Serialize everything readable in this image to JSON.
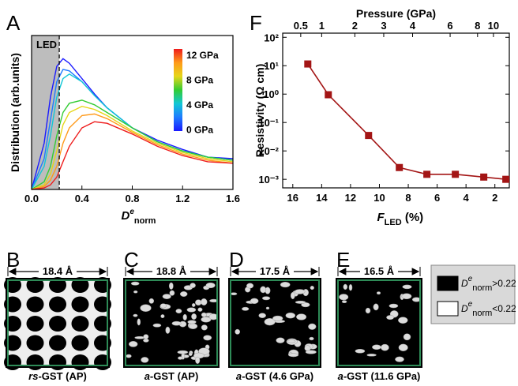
{
  "chart_data": [
    {
      "type": "line",
      "panel_label": "A",
      "ylabel": "Distribution (arb.units)",
      "xlabel": {
        "symbol": "D",
        "sup": "e",
        "sub": "norm"
      },
      "x": [
        0,
        0.1,
        0.15,
        0.2,
        0.25,
        0.3,
        0.4,
        0.5,
        0.6,
        0.8,
        1.0,
        1.2,
        1.4,
        1.6
      ],
      "series": [
        {
          "color": "#1a1aff",
          "values": [
            0,
            0.3,
            0.6,
            0.8,
            0.85,
            0.82,
            0.72,
            0.62,
            0.53,
            0.4,
            0.32,
            0.26,
            0.21,
            0.2
          ]
        },
        {
          "color": "#1e7bff",
          "values": [
            0,
            0.2,
            0.45,
            0.7,
            0.78,
            0.77,
            0.7,
            0.61,
            0.53,
            0.4,
            0.31,
            0.25,
            0.21,
            0.19
          ]
        },
        {
          "color": "#12c7d6",
          "values": [
            0,
            0.15,
            0.35,
            0.6,
            0.72,
            0.75,
            0.7,
            0.61,
            0.53,
            0.4,
            0.31,
            0.25,
            0.21,
            0.19
          ]
        },
        {
          "color": "#33cc33",
          "values": [
            0,
            0.05,
            0.15,
            0.35,
            0.5,
            0.56,
            0.58,
            0.55,
            0.5,
            0.4,
            0.31,
            0.25,
            0.21,
            0.19
          ]
        },
        {
          "color": "#e6d619",
          "values": [
            0,
            0.03,
            0.1,
            0.25,
            0.42,
            0.5,
            0.54,
            0.52,
            0.48,
            0.38,
            0.3,
            0.24,
            0.2,
            0.18
          ]
        },
        {
          "color": "#ff9a1a",
          "values": [
            0,
            0.02,
            0.06,
            0.15,
            0.3,
            0.4,
            0.48,
            0.49,
            0.46,
            0.37,
            0.29,
            0.23,
            0.19,
            0.17
          ]
        },
        {
          "color": "#ee1c1c",
          "values": [
            0,
            0.01,
            0.03,
            0.08,
            0.18,
            0.28,
            0.4,
            0.44,
            0.43,
            0.36,
            0.28,
            0.22,
            0.18,
            0.17
          ]
        }
      ],
      "xlim": [
        0,
        1.6
      ],
      "ylim": [
        0,
        1
      ],
      "xticks": [
        {
          "value": 0,
          "label": "0.0"
        },
        0.4,
        0.8,
        1.2,
        1.6
      ],
      "shaded_xlim": [
        0,
        0.22
      ],
      "shade_label": "LED",
      "colorbar_labels": [
        "12 GPa",
        "8 GPa",
        "4 GPa",
        "0 GPa"
      ]
    },
    {
      "type": "line",
      "panel_label": "F",
      "log_y": true,
      "ylabel": "Resistivity (Ω cm)",
      "xlabel": {
        "symbol": "F",
        "sub": "LED",
        "text": " (%)"
      },
      "x2label": "Pressure (GPa)",
      "color": "#a31515",
      "x": [
        14.96,
        13.54,
        10.75,
        8.62,
        6.71,
        4.74,
        2.77,
        1.24
      ],
      "values": [
        11.5,
        0.95,
        0.035,
        0.0026,
        0.0015,
        0.0015,
        0.0012,
        0.001
      ],
      "xlim": [
        16.7,
        1.0
      ],
      "ylim": [
        0.0005,
        140
      ],
      "xticks": [
        16,
        14,
        12,
        10,
        8,
        6,
        4,
        2
      ],
      "yticks": [
        {
          "value": 100,
          "label": "10²"
        },
        {
          "value": 10,
          "label": "10¹"
        },
        {
          "value": 1,
          "label": "10⁰"
        },
        {
          "value": 0.1,
          "label": "10⁻¹"
        },
        {
          "value": 0.01,
          "label": "10⁻²"
        },
        {
          "value": 0.001,
          "label": "10⁻³"
        }
      ],
      "x2ticks": [
        0.5,
        1,
        2,
        3,
        4,
        6,
        8,
        10
      ],
      "x2tick_x": [
        15.45,
        14.0,
        11.7,
        9.7,
        7.7,
        5.1,
        3.2,
        2.1
      ]
    }
  ],
  "structures": [
    {
      "label": "B",
      "width": "18.4 Å",
      "caption": [
        {
          "text": "rs",
          "italic": true
        },
        {
          "text": "-GST (AP)"
        }
      ]
    },
    {
      "label": "C",
      "width": "18.8 Å",
      "caption": [
        {
          "text": "a",
          "italic": true
        },
        {
          "text": "-GST (AP)"
        }
      ]
    },
    {
      "label": "D",
      "width": "17.5 Å",
      "caption": [
        {
          "text": "a",
          "italic": true
        },
        {
          "text": "-GST (4.6 GPa)"
        }
      ]
    },
    {
      "label": "E",
      "width": "16.5 Å",
      "caption": [
        {
          "text": "a",
          "italic": true
        },
        {
          "text": "-GST (11.6 GPa)"
        }
      ]
    }
  ],
  "structure_legend": [
    {
      "symbol": "D",
      "sup": "e",
      "sub": "norm",
      "text": ">0.22"
    },
    {
      "symbol": "D",
      "sup": "e",
      "sub": "norm",
      "text": "<0.22"
    }
  ]
}
